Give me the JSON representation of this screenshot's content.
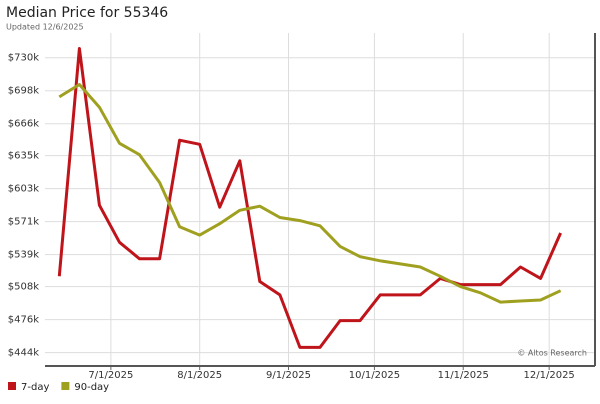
{
  "chart_data": {
    "type": "line",
    "title": "Median Price for 55346",
    "subtitle": "Updated 12/6/2025",
    "watermark": "© Altos Research",
    "x": [
      "6/13/2025",
      "6/20/2025",
      "6/27/2025",
      "7/4/2025",
      "7/11/2025",
      "7/18/2025",
      "7/25/2025",
      "8/1/2025",
      "8/8/2025",
      "8/15/2025",
      "8/22/2025",
      "8/29/2025",
      "9/5/2025",
      "9/12/2025",
      "9/19/2025",
      "9/26/2025",
      "10/3/2025",
      "10/10/2025",
      "10/17/2025",
      "10/24/2025",
      "10/31/2025",
      "11/7/2025",
      "11/14/2025",
      "11/21/2025",
      "11/28/2025",
      "12/5/2025"
    ],
    "series": [
      {
        "name": "7-day",
        "color": "#c0141b",
        "values": [
          518000,
          739000,
          587000,
          551000,
          535000,
          535000,
          650000,
          646000,
          585000,
          630000,
          513000,
          500000,
          449000,
          449000,
          475000,
          475000,
          500000,
          500000,
          500000,
          516000,
          510000,
          510000,
          510000,
          527000,
          516000,
          560000
        ]
      },
      {
        "name": "90-day",
        "color": "#a0a020",
        "values": [
          692000,
          704000,
          682000,
          647000,
          636000,
          609000,
          566000,
          558000,
          569000,
          582000,
          586000,
          575000,
          572000,
          567000,
          547000,
          537000,
          533000,
          530000,
          527000,
          518000,
          508000,
          502000,
          493000,
          494000,
          495000,
          504000
        ]
      }
    ],
    "xlim": [
      "6/8/2025",
      "12/17/2025"
    ],
    "xticks": [
      "7/1/2025",
      "8/1/2025",
      "9/1/2025",
      "10/1/2025",
      "11/1/2025",
      "12/1/2025"
    ],
    "ylim": [
      431000,
      754000
    ],
    "yticks": [
      {
        "value": 444000,
        "label": "$444k"
      },
      {
        "value": 476000,
        "label": "$476k"
      },
      {
        "value": 508000,
        "label": "$508k"
      },
      {
        "value": 539000,
        "label": "$539k"
      },
      {
        "value": 571000,
        "label": "$571k"
      },
      {
        "value": 603000,
        "label": "$603k"
      },
      {
        "value": 635000,
        "label": "$635k"
      },
      {
        "value": 666000,
        "label": "$666k"
      },
      {
        "value": 698000,
        "label": "$698k"
      },
      {
        "value": 730000,
        "label": "$730k"
      }
    ],
    "grid": true,
    "legend": "bottom-left"
  }
}
